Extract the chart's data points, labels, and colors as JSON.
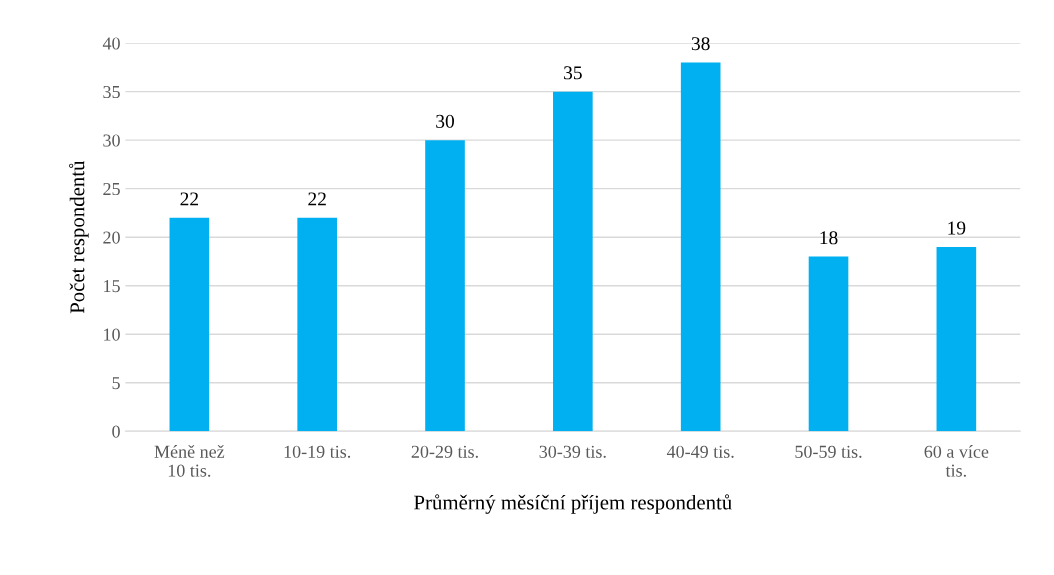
{
  "chart_data": {
    "type": "bar",
    "xlabel": "Průměrný měsíční příjem respondentů",
    "ylabel": "Počet respondentů",
    "categories": [
      "Méně než\n10 tis.",
      "10-19 tis.",
      "20-29 tis.",
      "30-39 tis.",
      "40-49 tis.",
      "50-59 tis.",
      "60 a více\ntis."
    ],
    "values": [
      22,
      22,
      30,
      35,
      38,
      18,
      19
    ],
    "color": "#00b0f0",
    "ylim": [
      0,
      40
    ],
    "yticks": [
      0,
      5,
      10,
      15,
      20,
      25,
      30,
      35,
      40
    ],
    "grid": "y",
    "data_labels": true,
    "legend": false
  }
}
